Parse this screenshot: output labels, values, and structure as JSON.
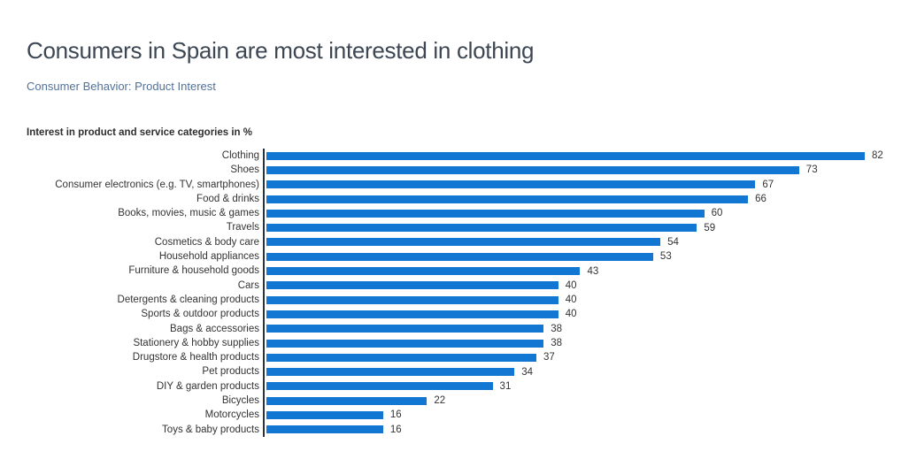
{
  "page": {
    "background": "#ffffff"
  },
  "header": {
    "title": "Consumers in Spain are most interested in clothing",
    "subtitle": "Consumer Behavior: Product Interest"
  },
  "chart_data": {
    "type": "bar",
    "orientation": "horizontal",
    "title": "Interest in product and service categories in %",
    "categories": [
      "Clothing",
      "Shoes",
      "Consumer electronics (e.g. TV, smartphones)",
      "Food & drinks",
      "Books, movies, music & games",
      "Travels",
      "Cosmetics & body care",
      "Household appliances",
      "Furniture & household goods",
      "Cars",
      "Detergents & cleaning products",
      "Sports & outdoor products",
      "Bags & accessories",
      "Stationery & hobby supplies",
      "Drugstore & health products",
      "Pet products",
      "DIY & garden products",
      "Bicycles",
      "Motorcycles",
      "Toys & baby products"
    ],
    "values": [
      82,
      73,
      67,
      66,
      60,
      59,
      54,
      53,
      43,
      40,
      40,
      40,
      38,
      38,
      37,
      34,
      31,
      22,
      16,
      16
    ],
    "value_labels_shown": true,
    "xlabel": "",
    "ylabel": "",
    "xlim": [
      0,
      82
    ],
    "grid": false,
    "legend": false
  },
  "colors": {
    "bar": "#1177d2",
    "axis_line": "#27323f",
    "labels": "#333333",
    "chart_title": "#2e2e2e",
    "page_title": "#3d4754",
    "subtitle": "#51719b"
  }
}
